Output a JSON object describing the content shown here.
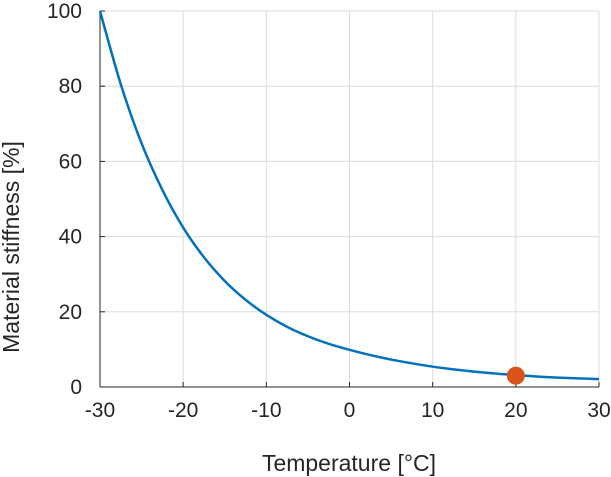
{
  "chart_data": {
    "type": "line",
    "title": "",
    "xlabel": "Temperature [°C]",
    "ylabel": "Material stiffness [%]",
    "xlim": [
      -30,
      30
    ],
    "ylim": [
      0,
      100
    ],
    "xticks": [
      -30,
      -20,
      -10,
      0,
      10,
      20,
      30
    ],
    "yticks": [
      0,
      20,
      40,
      60,
      80,
      100
    ],
    "grid": true,
    "legend": "none",
    "series": [
      {
        "color": "#0072BD",
        "x": [
          -30,
          -27.5,
          -25,
          -22.5,
          -20,
          -17.5,
          -15,
          -12.5,
          -10,
          -7.5,
          -5,
          -2.5,
          0,
          2.5,
          5,
          7.5,
          10,
          12.5,
          15,
          17.5,
          20,
          22.5,
          25,
          27.5,
          30
        ],
        "y": [
          100,
          80.5,
          64.8,
          52.4,
          42.4,
          34.5,
          28.2,
          23.2,
          19.2,
          16.0,
          13.5,
          11.5,
          9.9,
          8.5,
          7.3,
          6.3,
          5.4,
          4.7,
          4.1,
          3.6,
          3.2,
          2.8,
          2.5,
          2.3,
          2.1
        ]
      }
    ],
    "markers": [
      {
        "x": 20,
        "y": 3.0,
        "color": "#D95319"
      }
    ]
  }
}
